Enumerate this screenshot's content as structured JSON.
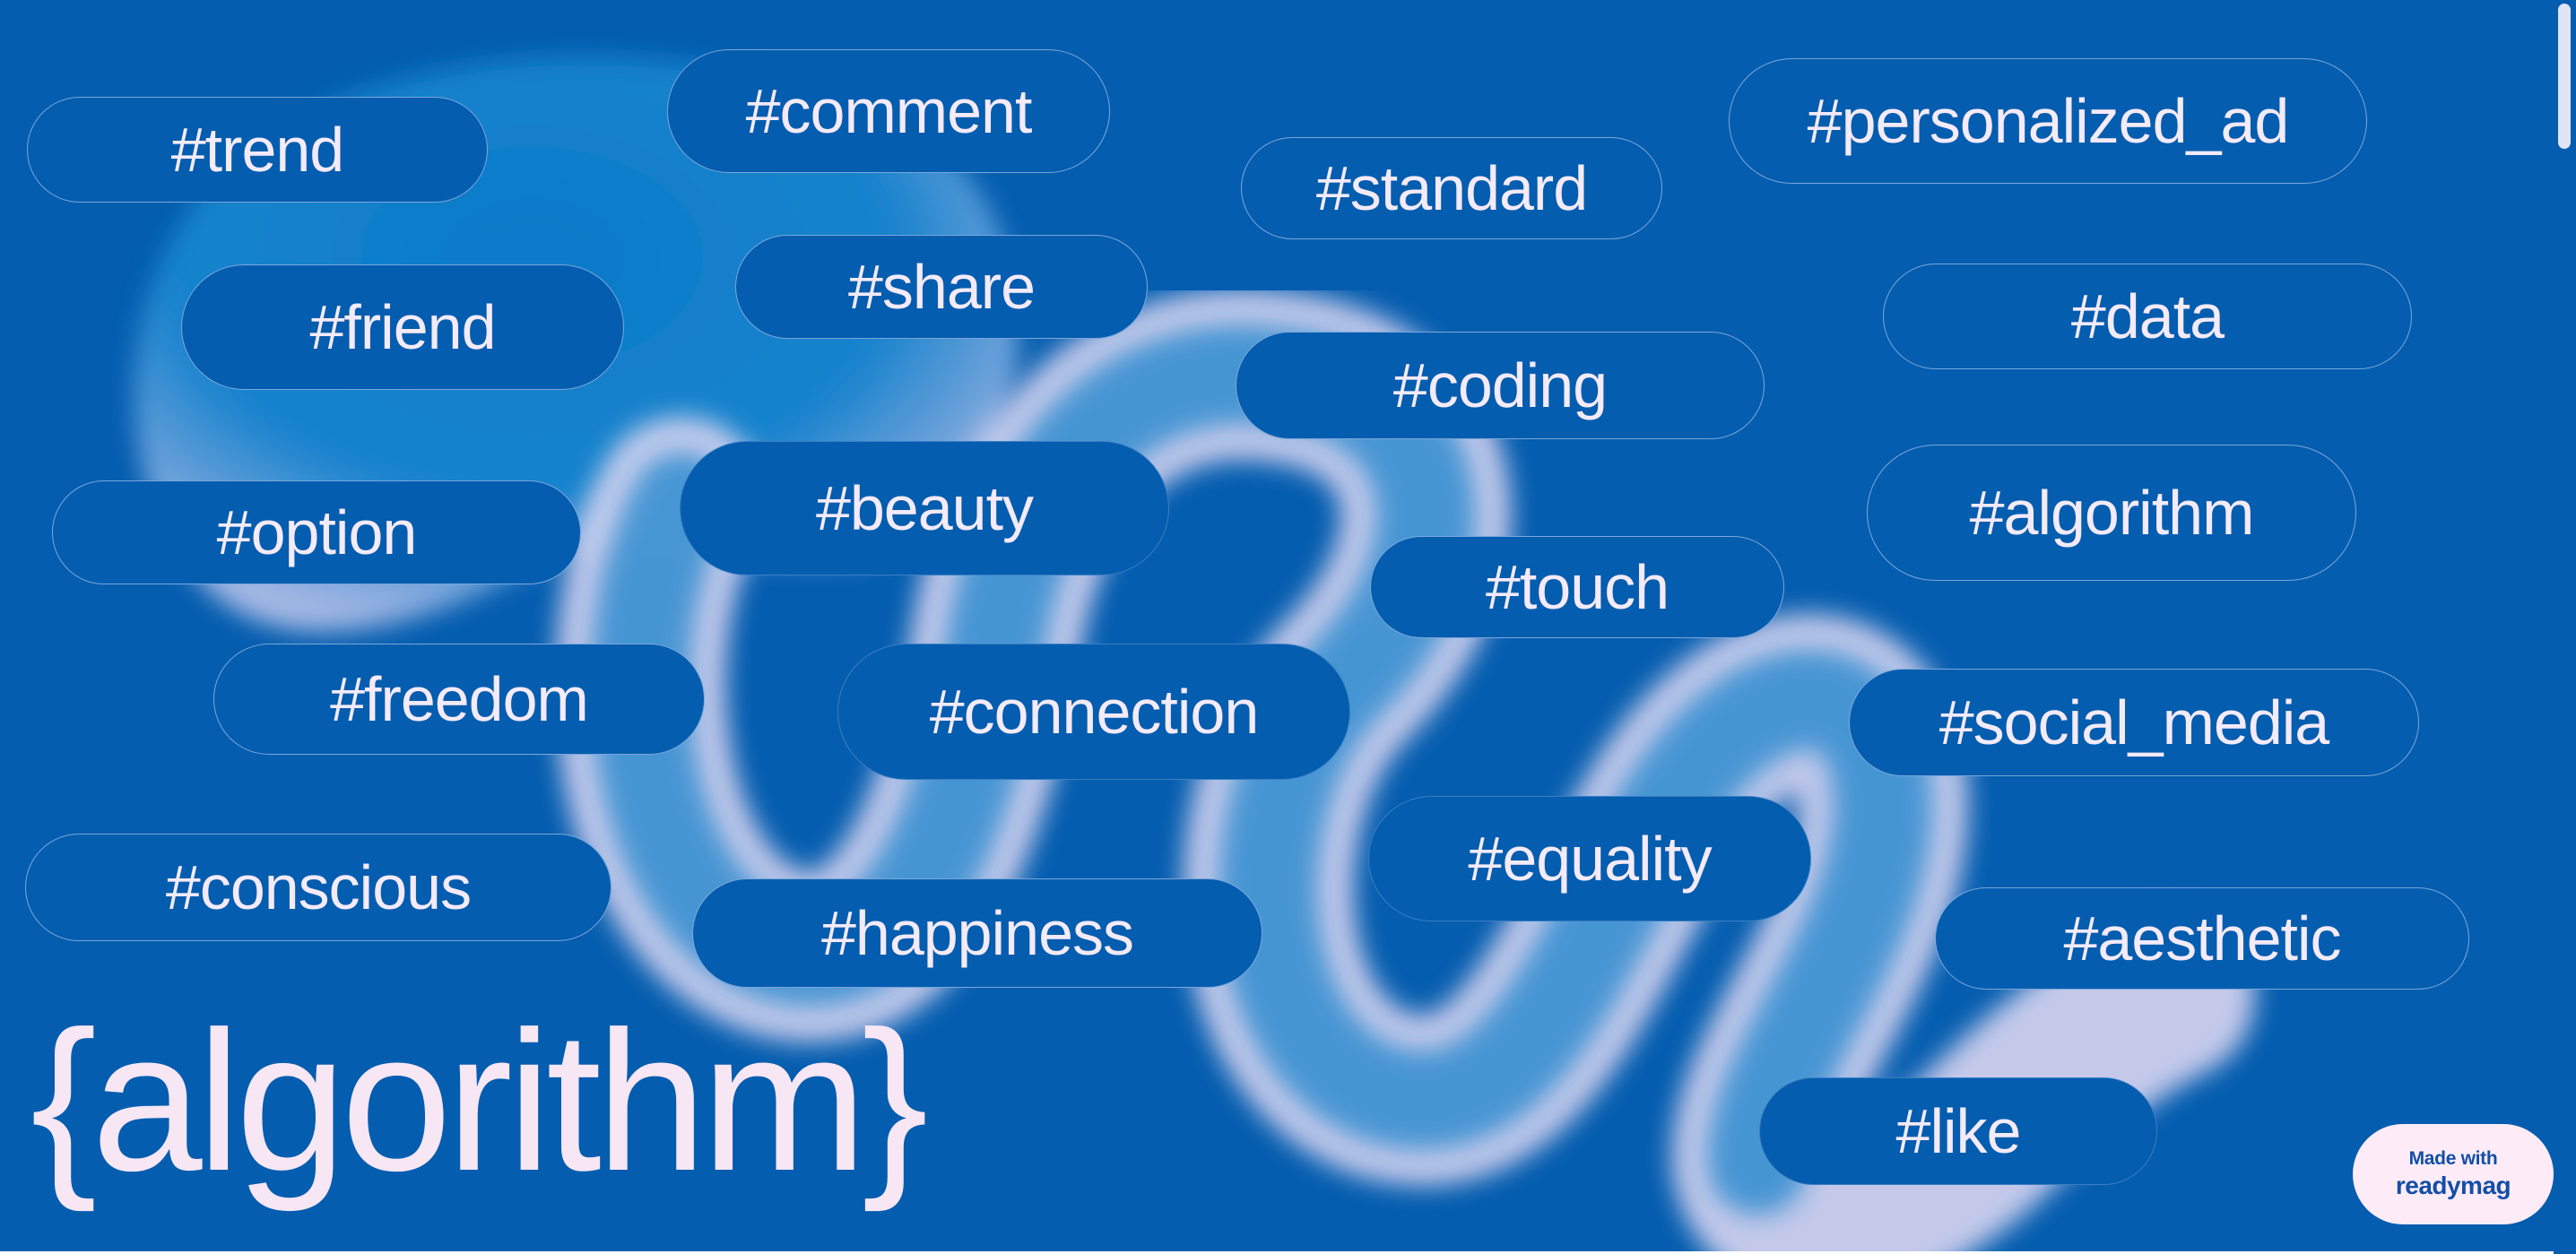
{
  "page": {
    "title": "{algorithm}",
    "background_color": "#045daf",
    "accent_color": "#f7e6f4",
    "ribbon_color": "#d6d2ee"
  },
  "tags": [
    {
      "id": "trend",
      "label": "#trend"
    },
    {
      "id": "comment",
      "label": "#comment"
    },
    {
      "id": "standard",
      "label": "#standard"
    },
    {
      "id": "personalized-ad",
      "label": "#personalized_ad"
    },
    {
      "id": "friend",
      "label": "#friend"
    },
    {
      "id": "share",
      "label": "#share"
    },
    {
      "id": "data",
      "label": "#data"
    },
    {
      "id": "coding",
      "label": "#coding"
    },
    {
      "id": "option",
      "label": "#option"
    },
    {
      "id": "beauty",
      "label": "#beauty"
    },
    {
      "id": "algorithm",
      "label": "#algorithm"
    },
    {
      "id": "touch",
      "label": "#touch"
    },
    {
      "id": "freedom",
      "label": "#freedom"
    },
    {
      "id": "connection",
      "label": "#connection"
    },
    {
      "id": "social-media",
      "label": "#social_media"
    },
    {
      "id": "equality",
      "label": "#equality"
    },
    {
      "id": "conscious",
      "label": "#conscious"
    },
    {
      "id": "happiness",
      "label": "#happiness"
    },
    {
      "id": "aesthetic",
      "label": "#aesthetic"
    },
    {
      "id": "like",
      "label": "#like"
    }
  ],
  "badge": {
    "line1": "Made with",
    "brand": "readymag"
  }
}
